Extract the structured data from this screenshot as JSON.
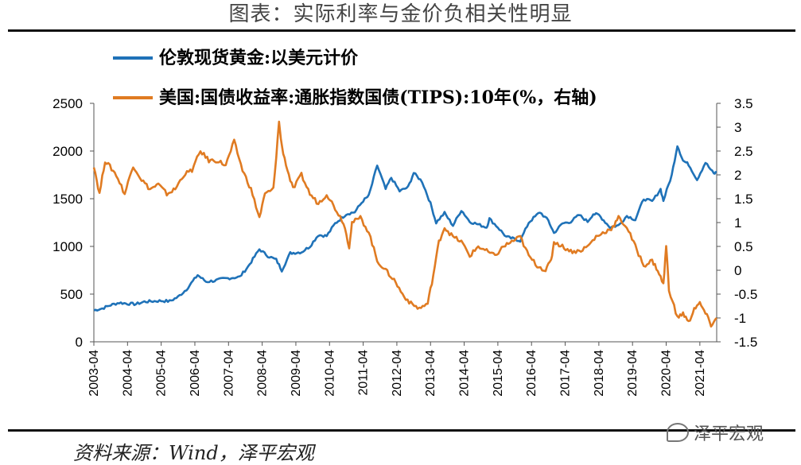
{
  "header": {
    "title": "图表：实际利率与金价负相关性明显"
  },
  "footer": {
    "source": "资料来源：Wind，泽平宏观",
    "watermark": "泽平宏观"
  },
  "colors": {
    "gold": "#1F72B8",
    "tips": "#E07B22"
  },
  "chart_data": {
    "type": "line",
    "series": [
      {
        "name": "伦敦现货黄金:以美元计价",
        "axis": "left",
        "color": "#1F72B8",
        "points": [
          [
            "2003-04",
            330
          ],
          [
            "2003-07",
            350
          ],
          [
            "2003-10",
            385
          ],
          [
            "2004-01",
            410
          ],
          [
            "2004-04",
            400
          ],
          [
            "2004-07",
            395
          ],
          [
            "2004-10",
            420
          ],
          [
            "2005-01",
            425
          ],
          [
            "2005-04",
            430
          ],
          [
            "2005-07",
            425
          ],
          [
            "2005-10",
            470
          ],
          [
            "2006-01",
            550
          ],
          [
            "2006-05",
            700
          ],
          [
            "2006-08",
            630
          ],
          [
            "2006-11",
            640
          ],
          [
            "2007-02",
            660
          ],
          [
            "2007-05",
            670
          ],
          [
            "2007-08",
            680
          ],
          [
            "2007-11",
            790
          ],
          [
            "2008-03",
            970
          ],
          [
            "2008-06",
            900
          ],
          [
            "2008-09",
            860
          ],
          [
            "2008-11",
            750
          ],
          [
            "2009-02",
            930
          ],
          [
            "2009-06",
            940
          ],
          [
            "2009-09",
            1000
          ],
          [
            "2009-12",
            1120
          ],
          [
            "2010-03",
            1110
          ],
          [
            "2010-06",
            1240
          ],
          [
            "2010-10",
            1340
          ],
          [
            "2011-01",
            1360
          ],
          [
            "2011-04",
            1480
          ],
          [
            "2011-06",
            1530
          ],
          [
            "2011-09",
            1850
          ],
          [
            "2011-12",
            1600
          ],
          [
            "2012-02",
            1720
          ],
          [
            "2012-05",
            1580
          ],
          [
            "2012-08",
            1620
          ],
          [
            "2012-10",
            1770
          ],
          [
            "2013-01",
            1680
          ],
          [
            "2013-04",
            1450
          ],
          [
            "2013-06",
            1250
          ],
          [
            "2013-09",
            1350
          ],
          [
            "2013-12",
            1220
          ],
          [
            "2014-03",
            1380
          ],
          [
            "2014-06",
            1260
          ],
          [
            "2014-09",
            1230
          ],
          [
            "2014-12",
            1200
          ],
          [
            "2015-01",
            1290
          ],
          [
            "2015-04",
            1200
          ],
          [
            "2015-07",
            1100
          ],
          [
            "2015-12",
            1060
          ],
          [
            "2016-03",
            1250
          ],
          [
            "2016-07",
            1360
          ],
          [
            "2016-10",
            1270
          ],
          [
            "2016-12",
            1140
          ],
          [
            "2017-03",
            1240
          ],
          [
            "2017-06",
            1260
          ],
          [
            "2017-09",
            1330
          ],
          [
            "2017-12",
            1260
          ],
          [
            "2018-02",
            1340
          ],
          [
            "2018-04",
            1330
          ],
          [
            "2018-08",
            1200
          ],
          [
            "2018-11",
            1220
          ],
          [
            "2019-02",
            1320
          ],
          [
            "2019-05",
            1280
          ],
          [
            "2019-08",
            1500
          ],
          [
            "2019-11",
            1470
          ],
          [
            "2020-02",
            1600
          ],
          [
            "2020-03",
            1480
          ],
          [
            "2020-06",
            1750
          ],
          [
            "2020-08",
            2060
          ],
          [
            "2020-10",
            1900
          ],
          [
            "2020-12",
            1860
          ],
          [
            "2021-03",
            1700
          ],
          [
            "2021-06",
            1880
          ],
          [
            "2021-09",
            1760
          ],
          [
            "2021-10",
            1780
          ]
        ]
      },
      {
        "name": "美国:国债收益率:通胀指数国债(TIPS):10年(%，右轴)",
        "axis": "right",
        "color": "#E07B22",
        "points": [
          [
            "2003-04",
            2.2
          ],
          [
            "2003-06",
            1.6
          ],
          [
            "2003-08",
            2.3
          ],
          [
            "2003-12",
            2.0
          ],
          [
            "2004-03",
            1.6
          ],
          [
            "2004-06",
            2.2
          ],
          [
            "2004-09",
            1.9
          ],
          [
            "2004-12",
            1.7
          ],
          [
            "2005-03",
            1.8
          ],
          [
            "2005-06",
            1.6
          ],
          [
            "2005-09",
            1.7
          ],
          [
            "2005-12",
            2.0
          ],
          [
            "2006-03",
            2.1
          ],
          [
            "2006-06",
            2.5
          ],
          [
            "2006-09",
            2.3
          ],
          [
            "2006-12",
            2.3
          ],
          [
            "2007-03",
            2.2
          ],
          [
            "2007-06",
            2.7
          ],
          [
            "2007-09",
            2.1
          ],
          [
            "2007-12",
            1.7
          ],
          [
            "2008-03",
            1.1
          ],
          [
            "2008-05",
            1.6
          ],
          [
            "2008-08",
            1.7
          ],
          [
            "2008-10",
            3.1
          ],
          [
            "2008-11",
            2.6
          ],
          [
            "2009-01",
            2.1
          ],
          [
            "2009-03",
            1.7
          ],
          [
            "2009-06",
            2.0
          ],
          [
            "2009-09",
            1.6
          ],
          [
            "2009-12",
            1.4
          ],
          [
            "2010-03",
            1.6
          ],
          [
            "2010-06",
            1.3
          ],
          [
            "2010-09",
            1.0
          ],
          [
            "2010-11",
            0.5
          ],
          [
            "2010-12",
            1.0
          ],
          [
            "2011-03",
            1.1
          ],
          [
            "2011-06",
            0.8
          ],
          [
            "2011-09",
            0.2
          ],
          [
            "2011-12",
            0.0
          ],
          [
            "2012-03",
            -0.2
          ],
          [
            "2012-06",
            -0.5
          ],
          [
            "2012-09",
            -0.7
          ],
          [
            "2012-12",
            -0.8
          ],
          [
            "2013-03",
            -0.7
          ],
          [
            "2013-05",
            -0.1
          ],
          [
            "2013-07",
            0.6
          ],
          [
            "2013-09",
            0.9
          ],
          [
            "2013-12",
            0.7
          ],
          [
            "2014-03",
            0.6
          ],
          [
            "2014-06",
            0.3
          ],
          [
            "2014-09",
            0.5
          ],
          [
            "2014-12",
            0.4
          ],
          [
            "2015-03",
            0.3
          ],
          [
            "2015-06",
            0.5
          ],
          [
            "2015-09",
            0.6
          ],
          [
            "2015-12",
            0.7
          ],
          [
            "2016-03",
            0.3
          ],
          [
            "2016-06",
            0.1
          ],
          [
            "2016-09",
            0.0
          ],
          [
            "2016-11",
            0.2
          ],
          [
            "2016-12",
            0.6
          ],
          [
            "2017-03",
            0.5
          ],
          [
            "2017-06",
            0.4
          ],
          [
            "2017-09",
            0.4
          ],
          [
            "2017-12",
            0.5
          ],
          [
            "2018-03",
            0.7
          ],
          [
            "2018-06",
            0.8
          ],
          [
            "2018-09",
            0.9
          ],
          [
            "2018-11",
            1.1
          ],
          [
            "2019-02",
            0.9
          ],
          [
            "2019-05",
            0.5
          ],
          [
            "2019-08",
            0.1
          ],
          [
            "2019-11",
            0.2
          ],
          [
            "2020-01",
            0.0
          ],
          [
            "2020-03",
            -0.3
          ],
          [
            "2020-04",
            0.5
          ],
          [
            "2020-05",
            -0.4
          ],
          [
            "2020-08",
            -1.0
          ],
          [
            "2020-10",
            -0.9
          ],
          [
            "2020-12",
            -1.1
          ],
          [
            "2021-02",
            -0.8
          ],
          [
            "2021-04",
            -0.7
          ],
          [
            "2021-06",
            -0.9
          ],
          [
            "2021-08",
            -1.15
          ],
          [
            "2021-10",
            -1.0
          ]
        ]
      }
    ],
    "x_tick_labels": [
      "2003-04",
      "2004-04",
      "2005-04",
      "2006-04",
      "2007-04",
      "2008-04",
      "2009-04",
      "2010-04",
      "2011-04",
      "2012-04",
      "2013-04",
      "2014-04",
      "2015-04",
      "2016-04",
      "2017-04",
      "2018-04",
      "2019-04",
      "2020-04",
      "2021-04"
    ],
    "y_left": {
      "min": 0,
      "max": 2500,
      "ticks": [
        "0",
        "500",
        "1000",
        "1500",
        "2000",
        "2500"
      ]
    },
    "y_right": {
      "min": -1.5,
      "max": 3.5,
      "ticks": [
        "-1.5",
        "-1",
        "-0.5",
        "0",
        "0.5",
        "1",
        "1.5",
        "2",
        "2.5",
        "3",
        "3.5"
      ]
    },
    "legend_position": "top-left"
  }
}
